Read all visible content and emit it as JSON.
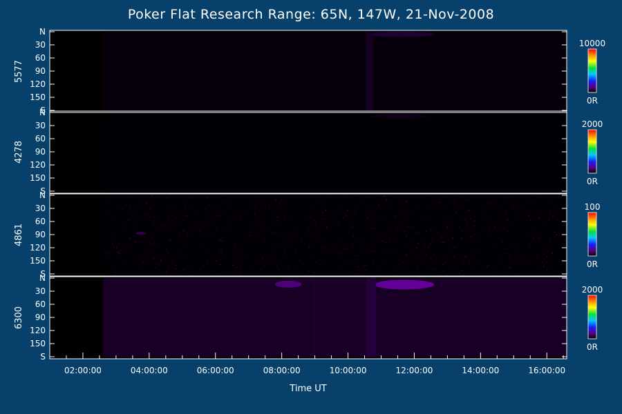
{
  "title": "Poker Flat Research Range: 65N, 147W, 21-Nov-2008",
  "chart_data": {
    "type": "heatmap",
    "title": "Poker Flat Research Range: 65N, 147W, 21-Nov-2008",
    "xlabel": "Time UT",
    "x_ticks": [
      "02:00:00",
      "04:00:00",
      "06:00:00",
      "08:00:00",
      "10:00:00",
      "12:00:00",
      "14:00:00",
      "16:00:00"
    ],
    "x_range_hours": [
      1.0,
      16.6
    ],
    "y_ticks": [
      "N",
      "30",
      "60",
      "90",
      "120",
      "150",
      "S"
    ],
    "y_range_deg": [
      0,
      180
    ],
    "grid": false,
    "panels": [
      {
        "label": "5577",
        "colorbar_max": "10000",
        "colorbar_min": "0R",
        "base_intensity": 0.06,
        "data_start_hour": 2.6,
        "noise": 0.03,
        "features": [
          {
            "type": "arc",
            "t_start": 10.6,
            "t_end": 12.6,
            "lat_start": 0,
            "lat_end": 12,
            "intensity": 0.22
          },
          {
            "type": "stripe",
            "t_start": 10.55,
            "t_end": 10.75,
            "lat_start": 0,
            "lat_end": 180,
            "intensity": 0.12
          }
        ]
      },
      {
        "label": "4278",
        "colorbar_max": "2000",
        "colorbar_min": "0R",
        "base_intensity": 0.02,
        "data_start_hour": 2.6,
        "noise": 0.05,
        "features": [
          {
            "type": "arc",
            "t_start": 10.7,
            "t_end": 12.4,
            "lat_start": 4,
            "lat_end": 14,
            "intensity": 0.12
          }
        ]
      },
      {
        "label": "4861",
        "colorbar_max": "100",
        "colorbar_min": "0R",
        "base_intensity": 0.02,
        "data_start_hour": 2.6,
        "noise": 0.35,
        "features": [
          {
            "type": "arc",
            "t_start": 3.6,
            "t_end": 3.9,
            "lat_start": 84,
            "lat_end": 90,
            "intensity": 0.4
          }
        ]
      },
      {
        "label": "6300",
        "colorbar_max": "2000",
        "colorbar_min": "0R",
        "base_intensity": 0.18,
        "data_start_hour": 2.6,
        "noise": 0.06,
        "features": [
          {
            "type": "arc",
            "t_start": 7.8,
            "t_end": 8.6,
            "lat_start": 6,
            "lat_end": 22,
            "intensity": 0.45
          },
          {
            "type": "arc",
            "t_start": 10.8,
            "t_end": 12.6,
            "lat_start": 4,
            "lat_end": 26,
            "intensity": 0.6
          },
          {
            "type": "stripe",
            "t_start": 10.55,
            "t_end": 10.85,
            "lat_start": 0,
            "lat_end": 180,
            "intensity": 0.12
          },
          {
            "type": "stripe",
            "t_start": 8.9,
            "t_end": 9.0,
            "lat_start": 0,
            "lat_end": 180,
            "intensity": 0.06
          }
        ]
      }
    ]
  }
}
